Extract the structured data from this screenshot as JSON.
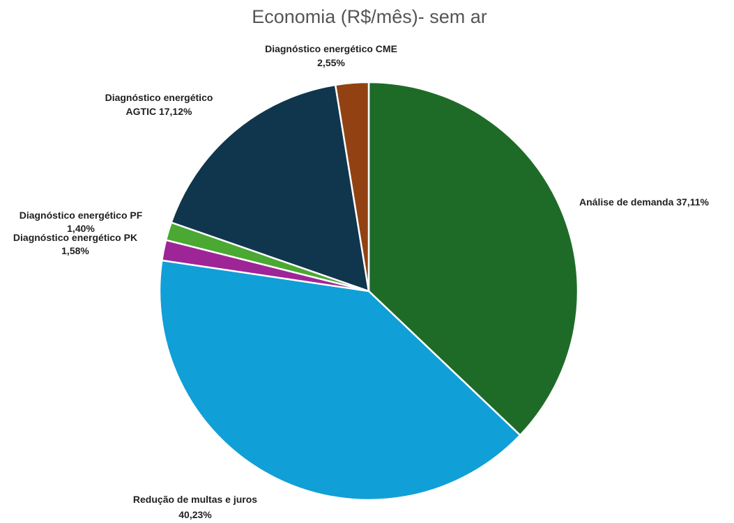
{
  "chart_data": {
    "type": "pie",
    "title": "Economia (R$/mês)- sem ar",
    "slices": [
      {
        "name": "Análise de demanda",
        "value": 37.11,
        "label_lines": [
          "Análise de demanda 37,11%"
        ],
        "color": "#1e6b28"
      },
      {
        "name": "Redução de multas e juros",
        "value": 40.23,
        "label_lines": [
          "Redução de multas e juros",
          "40,23%"
        ],
        "color": "#119fd7"
      },
      {
        "name": "Diagnóstico energético PK",
        "value": 1.58,
        "label_lines": [
          "Diagnóstico energético PK",
          "1,58%"
        ],
        "color": "#9e2597"
      },
      {
        "name": "Diagnóstico energético PF",
        "value": 1.4,
        "label_lines": [
          "Diagnóstico energético PF",
          "1,40%"
        ],
        "color": "#4ba832"
      },
      {
        "name": "Diagnóstico energético AGTIC",
        "value": 17.12,
        "label_lines": [
          "Diagnóstico energético",
          "AGTIC 17,12%"
        ],
        "color": "#0f364d"
      },
      {
        "name": "Diagnóstico energético CME",
        "value": 2.55,
        "label_lines": [
          "Diagnóstico energético CME",
          "2,55%"
        ],
        "color": "#924212"
      }
    ],
    "legend": "none"
  }
}
